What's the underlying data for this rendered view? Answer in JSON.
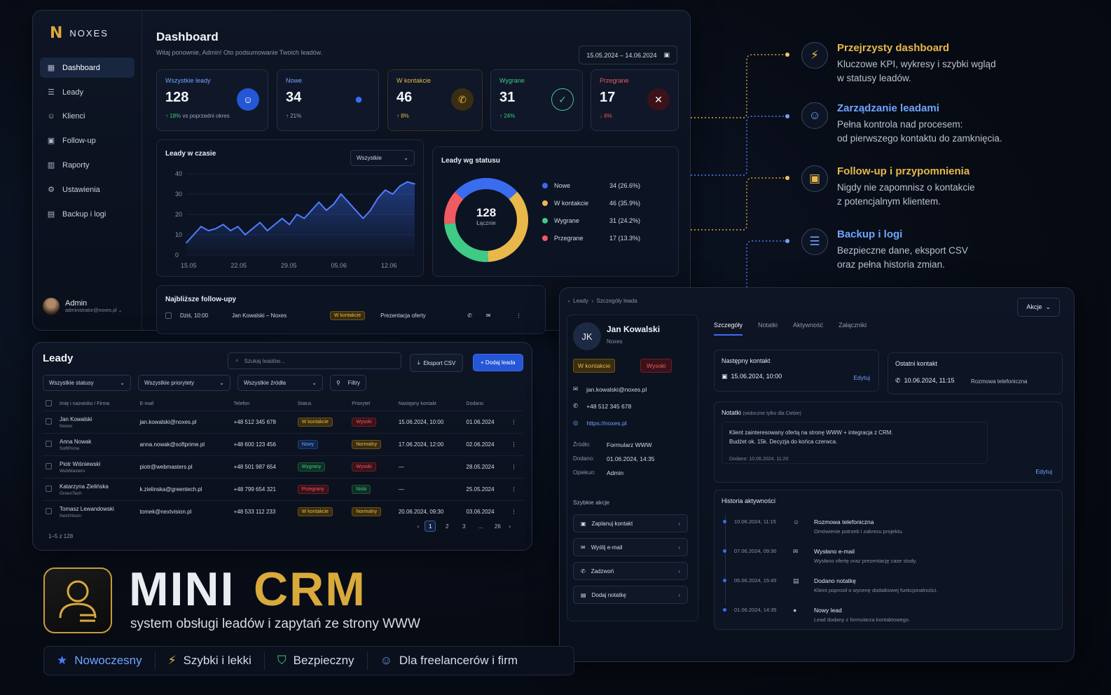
{
  "dashboard": {
    "logo": "NOXES",
    "nav": [
      "Dashboard",
      "Leady",
      "Klienci",
      "Follow-up",
      "Raporty",
      "Ustawienia",
      "Backup i logi"
    ],
    "admin_name": "Admin",
    "admin_email": "administrator@noxes.pl",
    "title": "Dashboard",
    "subtitle": "Witaj ponownie, Admin! Oto podsumowanie Twoich leadów.",
    "date_range": "15.05.2024 – 14.06.2024",
    "kpis": [
      {
        "label": "Wszystkie leady",
        "value": "128",
        "delta": "↑ 18%",
        "delta_note": "vs poprzedni okres",
        "color": "#5b8cff"
      },
      {
        "label": "Nowe",
        "value": "34",
        "delta": "↑ 21%",
        "delta_note": "",
        "color": "#5b8cff"
      },
      {
        "label": "W kontakcie",
        "value": "46",
        "delta": "↑ 8%",
        "delta_note": "",
        "color": "#e8b84a"
      },
      {
        "label": "Wygrane",
        "value": "31",
        "delta": "↑ 24%",
        "delta_note": "",
        "color": "#3fca86"
      },
      {
        "label": "Przegrane",
        "value": "17",
        "delta": "↓ 6%",
        "delta_note": "",
        "color": "#ef5a63"
      }
    ],
    "line_card_title": "Leady w czasie",
    "line_filter": "Wszystkie",
    "donut_card_title": "Leady wg statusu",
    "donut_total": "128",
    "donut_total_label": "Łącznie",
    "followup_title": "Najbliższe follow-upy",
    "followup_row": {
      "when": "Dziś, 10:00",
      "who": "Jan Kowalski – Noxes",
      "status": "W kontakcie",
      "task": "Prezentacja oferty"
    }
  },
  "chart_data": [
    {
      "type": "line",
      "title": "Leady w czasie",
      "x_ticks": [
        "15.05",
        "22.05",
        "29.05",
        "05.06",
        "12.06"
      ],
      "y_ticks": [
        0,
        10,
        20,
        30,
        40
      ],
      "ylim": [
        0,
        40
      ],
      "values": [
        6,
        10,
        14,
        12,
        13,
        15,
        12,
        14,
        10,
        13,
        16,
        12,
        15,
        18,
        15,
        20,
        18,
        22,
        26,
        22,
        25,
        30,
        26,
        22,
        18,
        22,
        28,
        32,
        30,
        34,
        36,
        35
      ],
      "color": "#4f7dff"
    },
    {
      "type": "pie",
      "title": "Leady wg statusu",
      "labels": [
        "Nowe",
        "W kontakcie",
        "Wygrane",
        "Przegrane"
      ],
      "values": [
        34,
        46,
        31,
        17
      ],
      "display": [
        "34 (26.6%)",
        "46 (35.9%)",
        "31 (24.2%)",
        "17 (13.3%)"
      ],
      "colors": [
        "#3a6cf0",
        "#e8b84a",
        "#3fca86",
        "#ef5a63"
      ]
    }
  ],
  "leads": {
    "title": "Leady",
    "search_placeholder": "Szukaj leadów...",
    "export_label": "Eksport CSV",
    "add_label": "+ Dodaj leada",
    "filters": [
      "Wszystkie statusy",
      "Wszystkie priorytety",
      "Wszystkie źródła"
    ],
    "filters_btn": "Filtry",
    "columns": [
      "Imię i nazwisko / Firma",
      "E-mail",
      "Telefon",
      "Status",
      "Priorytet",
      "Następny kontakt",
      "Dodano"
    ],
    "rows": [
      {
        "name": "Jan Kowalski",
        "firm": "Noxes",
        "email": "jan.kowalski@noxes.pl",
        "phone": "+48 512 345 678",
        "status": "W kontakcie",
        "status_cls": "b-contact",
        "prio": "Wysoki",
        "prio_cls": "b-high",
        "next": "15.06.2024, 10:00",
        "added": "01.06.2024"
      },
      {
        "name": "Anna Nowak",
        "firm": "SoftPrime",
        "email": "anna.nowak@softprime.pl",
        "phone": "+48 600 123 456",
        "status": "Nowy",
        "status_cls": "b-new",
        "prio": "Normalny",
        "prio_cls": "b-norm",
        "next": "17.06.2024, 12:00",
        "added": "02.06.2024"
      },
      {
        "name": "Piotr Wiśniewski",
        "firm": "WebMasters",
        "email": "piotr@webmasters.pl",
        "phone": "+48 501 987 654",
        "status": "Wygrany",
        "status_cls": "b-won",
        "prio": "Wysoki",
        "prio_cls": "b-high",
        "next": "—",
        "added": "28.05.2024"
      },
      {
        "name": "Katarzyna Zielińska",
        "firm": "GreenTech",
        "email": "k.zielinska@greentech.pl",
        "phone": "+48 799 654 321",
        "status": "Przegrany",
        "status_cls": "b-lost",
        "prio": "Niski",
        "prio_cls": "b-low",
        "next": "—",
        "added": "25.05.2024"
      },
      {
        "name": "Tomasz Lewandowski",
        "firm": "NextVision",
        "email": "tomek@nextvision.pl",
        "phone": "+48 533 112 233",
        "status": "W kontakcie",
        "status_cls": "b-contact",
        "prio": "Normalny",
        "prio_cls": "b-norm",
        "next": "20.06.2024, 09:30",
        "added": "03.06.2024"
      }
    ],
    "count": "1–5 z 128",
    "pages": [
      "1",
      "2",
      "3",
      "...",
      "26"
    ]
  },
  "detail": {
    "crumb_1": "Leady",
    "crumb_2": "Szczegóły leada",
    "actions": "Akcje",
    "initials": "JK",
    "name": "Jan Kowalski",
    "firm": "Noxes",
    "status": "W kontakcie",
    "priority": "Wysoki",
    "email": "jan.kowalski@noxes.pl",
    "phone": "+48 512 345 678",
    "url": "https://noxes.pl",
    "source_k": "Źródło:",
    "source_v": "Formularz WWW",
    "added_k": "Dodano:",
    "added_v": "01.06.2024, 14:35",
    "owner_k": "Opiekun:",
    "owner_v": "Admin",
    "quick_title": "Szybkie akcje",
    "quick": [
      "Zaplanuj kontakt",
      "Wyślij e-mail",
      "Zadzwoń",
      "Dodaj notatkę"
    ],
    "tabs": [
      "Szczegóły",
      "Notatki",
      "Aktywność",
      "Załączniki"
    ],
    "next_title": "Następny kontakt",
    "next_val": "15.06.2024, 10:00",
    "edit": "Edytuj",
    "last_title": "Ostatni kontakt",
    "last_val": "10.06.2024, 11:15",
    "last_type": "Rozmowa telefoniczna",
    "notes_title": "Notatki",
    "notes_hint": "(widoczne tylko dla Ciebie)",
    "notes_text_1": "Klient zainteresowany ofertą na stronę WWW + integracja z CRM.",
    "notes_text_2": "Budżet ok. 15k. Decyzja do końca czerwca.",
    "notes_added": "Dodano: 10.06.2024, 11:20",
    "history_title": "Historia aktywności",
    "history": [
      {
        "date": "10.06.2024, 11:15",
        "title": "Rozmowa telefoniczna",
        "desc": "Omówienie potrzeb i zakresu projektu."
      },
      {
        "date": "07.06.2024, 09:30",
        "title": "Wysłano e-mail",
        "desc": "Wysłano ofertę oraz prezentację case study."
      },
      {
        "date": "05.06.2024, 15:45",
        "title": "Dodano notatkę",
        "desc": "Klient poprosił o wycenę dodatkowej funkcjonalności."
      },
      {
        "date": "01.06.2024, 14:35",
        "title": "Nowy lead",
        "desc": "Lead dodany z formularza kontaktowego."
      }
    ]
  },
  "features": [
    {
      "title": "Przejrzysty dashboard",
      "desc_1": "Kluczowe KPI, wykresy i szybki wgląd",
      "desc_2": "w statusy leadów.",
      "color": "#e8b84a",
      "icon": "bolt-icon"
    },
    {
      "title": "Zarządzanie leadami",
      "desc_1": "Pełna kontrola nad procesem:",
      "desc_2": "od pierwszego kontaktu do zamknięcia.",
      "color": "#6fa4ff",
      "icon": "users-icon"
    },
    {
      "title": "Follow-up i przypomnienia",
      "desc_1": "Nigdy nie zapomnisz o kontakcie",
      "desc_2": "z potencjalnym klientem.",
      "color": "#e8b84a",
      "icon": "calendar-icon"
    },
    {
      "title": "Backup i logi",
      "desc_1": "Bezpieczne dane, eksport CSV",
      "desc_2": "oraz pełna historia zmian.",
      "color": "#6fa4ff",
      "icon": "database-icon"
    }
  ],
  "brand": {
    "mini": "MINI",
    "crm": "CRM",
    "subtitle": "system obsługi leadów i zapytań ze strony WWW",
    "pills": [
      "Nowoczesny",
      "Szybki i lekki",
      "Bezpieczny",
      "Dla freelancerów i firm"
    ]
  }
}
